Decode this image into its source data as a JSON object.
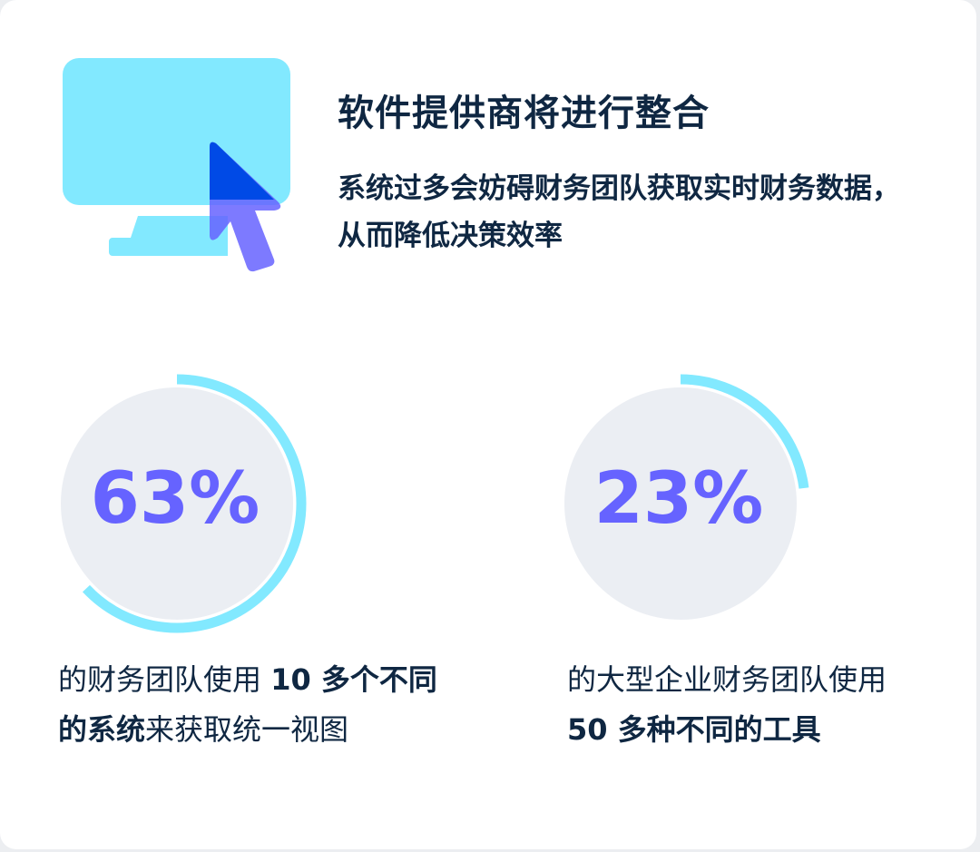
{
  "title": "软件提供商将进行整合",
  "subtitle": "系统过多会妨碍财务团队获取实时财务数据，从而降低决策效率",
  "icon": "computer-cursor-icon",
  "colors": {
    "text": "#0f2742",
    "accent": "#6663ff",
    "ring": "#82e9ff",
    "circle": "#ebeef3"
  },
  "stats": [
    {
      "percent_label": "63%",
      "value": 63,
      "desc_pre": "的财务团队使用 ",
      "desc_bold": "10 多个不同的系统",
      "desc_post": "来获取统一视图"
    },
    {
      "percent_label": "23%",
      "value": 23,
      "desc_pre": "的大型企业财务团队使用 ",
      "desc_bold": "50 多种不同的工具",
      "desc_post": ""
    }
  ]
}
